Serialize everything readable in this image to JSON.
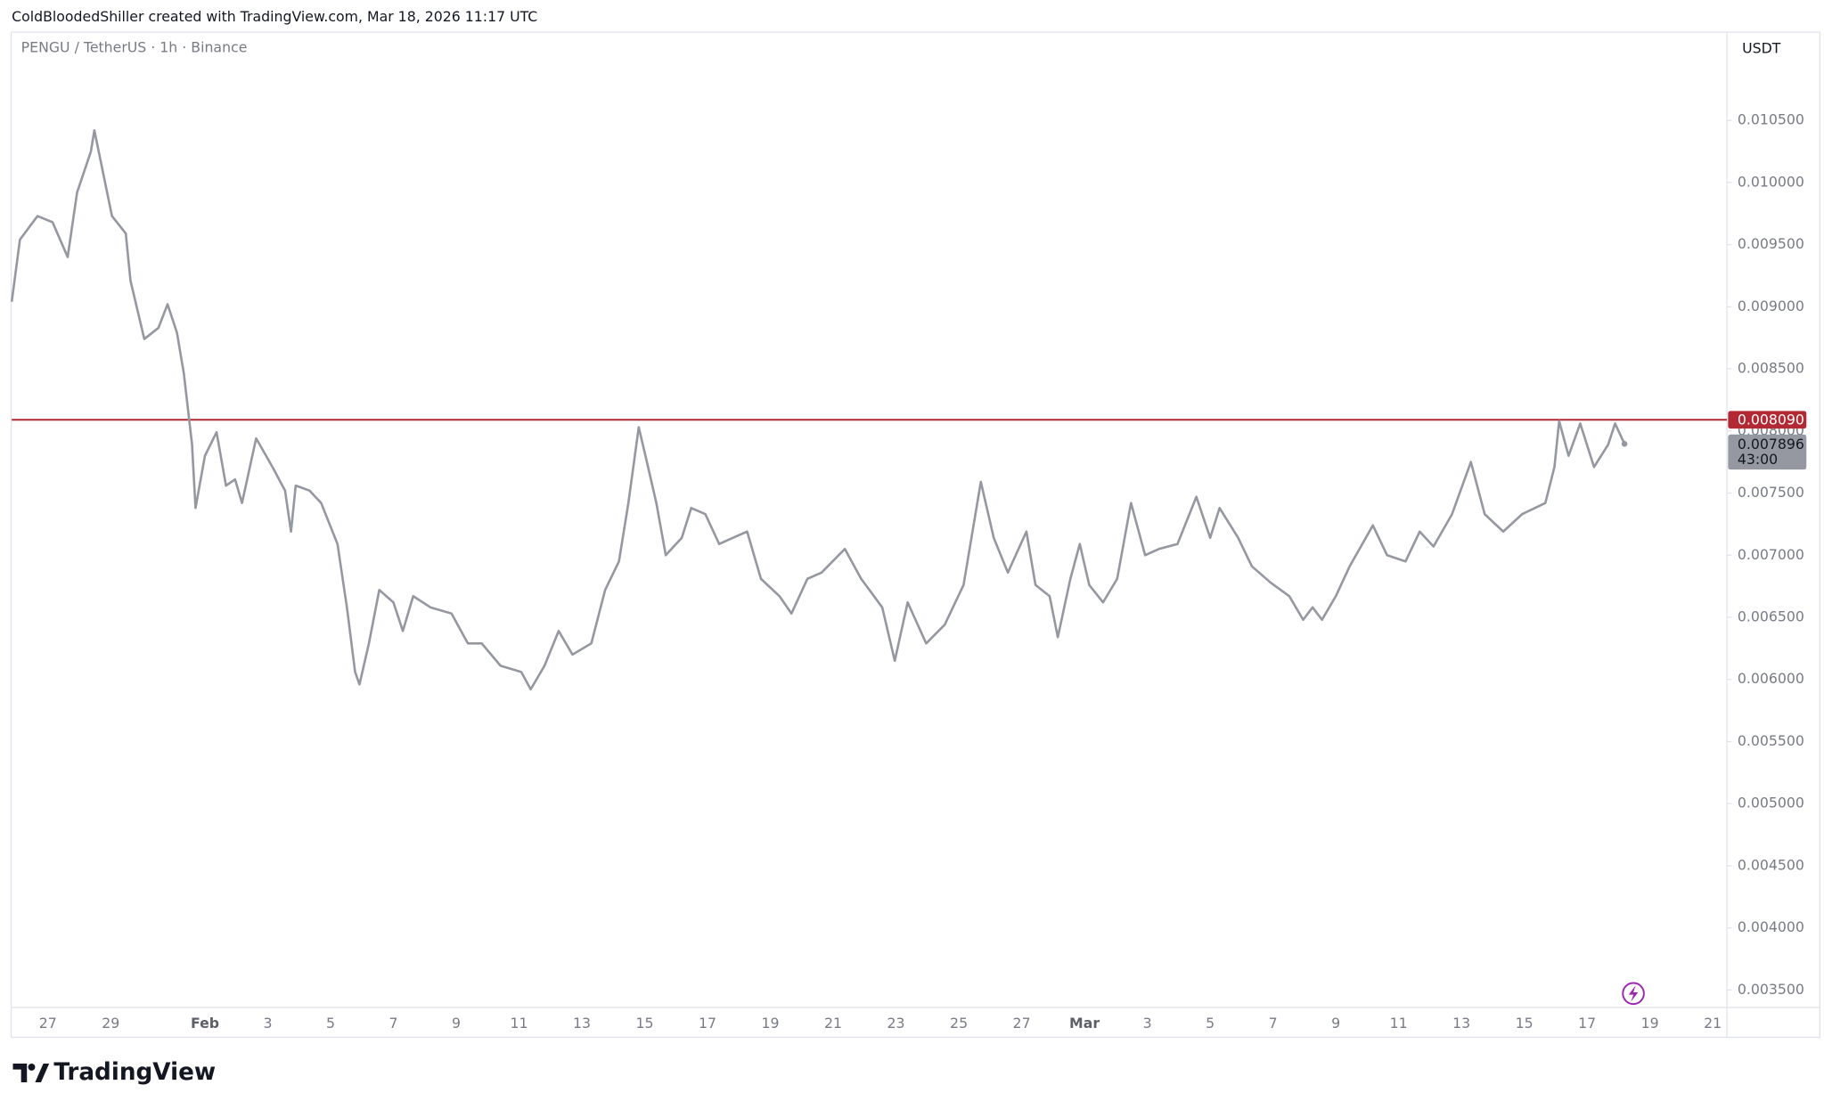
{
  "header": {
    "text": "ColdBloodedShiller created with TradingView.com, Mar 18, 2026 11:17 UTC"
  },
  "chart_data": {
    "type": "line",
    "title": "PENGU / TetherUS · 1h · Binance",
    "y_unit_label": "USDT",
    "color": "#9598a1",
    "x": [
      25.85,
      26.11,
      26.67,
      27.15,
      27.63,
      27.93,
      28.37,
      28.48,
      28.74,
      29.04,
      29.48,
      29.63,
      30.07,
      30.52,
      30.81,
      31.11,
      31.33,
      31.59,
      31.7,
      32.0,
      32.37,
      32.67,
      32.96,
      33.18,
      33.63,
      34.15,
      34.55,
      34.74,
      34.89,
      35.33,
      35.7,
      36.22,
      36.52,
      36.78,
      36.92,
      37.22,
      37.55,
      38.0,
      38.3,
      38.63,
      39.18,
      39.85,
      40.37,
      40.81,
      41.41,
      42.07,
      42.37,
      42.81,
      43.26,
      43.7,
      44.3,
      44.74,
      45.18,
      45.48,
      45.81,
      46.07,
      46.37,
      46.67,
      47.18,
      47.48,
      47.93,
      48.37,
      48.81,
      49.26,
      49.7,
      50.29,
      50.67,
      51.18,
      51.63,
      52.37,
      52.89,
      53.56,
      53.96,
      54.37,
      54.96,
      55.55,
      56.15,
      56.7,
      57.11,
      57.56,
      58.15,
      58.44,
      58.89,
      59.15,
      59.55,
      59.85,
      60.15,
      60.59,
      61.04,
      61.48,
      61.93,
      62.37,
      62.96,
      63.56,
      64.0,
      64.3,
      64.89,
      65.33,
      65.92,
      66.52,
      66.96,
      67.26,
      67.56,
      68.0,
      68.44,
      69.18,
      69.63,
      70.22,
      70.67,
      71.11,
      71.7,
      72.3,
      72.74,
      73.33,
      73.93,
      74.67,
      74.96,
      75.11,
      75.41,
      75.78,
      76.22,
      76.67,
      76.89,
      77.19
    ],
    "values": [
      0.00904,
      0.00954,
      0.00973,
      0.00968,
      0.0094,
      0.00992,
      0.01025,
      0.01042,
      0.0101,
      0.00973,
      0.00959,
      0.00921,
      0.00874,
      0.00883,
      0.00902,
      0.00879,
      0.00846,
      0.00789,
      0.00738,
      0.0078,
      0.00799,
      0.00756,
      0.00761,
      0.00742,
      0.00794,
      0.00771,
      0.00752,
      0.00719,
      0.00756,
      0.00752,
      0.00742,
      0.00709,
      0.00658,
      0.00606,
      0.00596,
      0.00629,
      0.00672,
      0.00662,
      0.00639,
      0.00667,
      0.00658,
      0.00653,
      0.00629,
      0.00629,
      0.00611,
      0.00606,
      0.00592,
      0.00611,
      0.00639,
      0.0062,
      0.00629,
      0.00672,
      0.00695,
      0.00742,
      0.00803,
      0.00775,
      0.00742,
      0.007,
      0.00714,
      0.00738,
      0.00733,
      0.00709,
      0.00714,
      0.00719,
      0.00681,
      0.00667,
      0.00653,
      0.00681,
      0.00686,
      0.00705,
      0.00681,
      0.00658,
      0.00615,
      0.00662,
      0.00629,
      0.00644,
      0.00676,
      0.00759,
      0.00714,
      0.00686,
      0.00719,
      0.00676,
      0.00667,
      0.00634,
      0.00681,
      0.00709,
      0.00676,
      0.00662,
      0.00681,
      0.00742,
      0.007,
      0.00705,
      0.00709,
      0.00747,
      0.00714,
      0.00738,
      0.00714,
      0.00691,
      0.00678,
      0.00667,
      0.00648,
      0.00658,
      0.00648,
      0.00667,
      0.00691,
      0.00724,
      0.007,
      0.00695,
      0.00719,
      0.00707,
      0.00733,
      0.00775,
      0.00733,
      0.00719,
      0.00733,
      0.00742,
      0.00771,
      0.00808,
      0.0078,
      0.00806,
      0.00771,
      0.00789,
      0.00806,
      0.007896
    ],
    "xlim": [
      25.85,
      80.45
    ],
    "xticks": [
      {
        "value": 27,
        "label": "27"
      },
      {
        "value": 29,
        "label": "29"
      },
      {
        "value": 32,
        "label": "Feb"
      },
      {
        "value": 34,
        "label": "3"
      },
      {
        "value": 36,
        "label": "5"
      },
      {
        "value": 38,
        "label": "7"
      },
      {
        "value": 40,
        "label": "9"
      },
      {
        "value": 42,
        "label": "11"
      },
      {
        "value": 44,
        "label": "13"
      },
      {
        "value": 46,
        "label": "15"
      },
      {
        "value": 48,
        "label": "17"
      },
      {
        "value": 50,
        "label": "19"
      },
      {
        "value": 52,
        "label": "21"
      },
      {
        "value": 54,
        "label": "23"
      },
      {
        "value": 56,
        "label": "25"
      },
      {
        "value": 58,
        "label": "27"
      },
      {
        "value": 60,
        "label": "Mar"
      },
      {
        "value": 62,
        "label": "3"
      },
      {
        "value": 64,
        "label": "5"
      },
      {
        "value": 66,
        "label": "7"
      },
      {
        "value": 68,
        "label": "9"
      },
      {
        "value": 70,
        "label": "11"
      },
      {
        "value": 72,
        "label": "13"
      },
      {
        "value": 74,
        "label": "15"
      },
      {
        "value": 76,
        "label": "17"
      },
      {
        "value": 78,
        "label": "19"
      },
      {
        "value": 80,
        "label": "21"
      }
    ],
    "ylim": [
      0.003359,
      0.011215
    ],
    "yticks": [
      {
        "value": 0.0105,
        "label": "0.010500"
      },
      {
        "value": 0.01,
        "label": "0.010000"
      },
      {
        "value": 0.0095,
        "label": "0.009500"
      },
      {
        "value": 0.009,
        "label": "0.009000"
      },
      {
        "value": 0.0085,
        "label": "0.008500"
      },
      {
        "value": 0.008,
        "label": "0.008000"
      },
      {
        "value": 0.0075,
        "label": "0.007500"
      },
      {
        "value": 0.007,
        "label": "0.007000"
      },
      {
        "value": 0.0065,
        "label": "0.006500"
      },
      {
        "value": 0.006,
        "label": "0.006000"
      },
      {
        "value": 0.0055,
        "label": "0.005500"
      },
      {
        "value": 0.005,
        "label": "0.005000"
      },
      {
        "value": 0.0045,
        "label": "0.004500"
      },
      {
        "value": 0.004,
        "label": "0.004000"
      },
      {
        "value": 0.0035,
        "label": "0.003500"
      }
    ],
    "hline": {
      "value": 0.00809,
      "label": "0.008090",
      "color": "#b22833"
    },
    "last_price": 0.007896,
    "countdown": "43:00"
  },
  "footer": {
    "brand": "TradingView"
  }
}
